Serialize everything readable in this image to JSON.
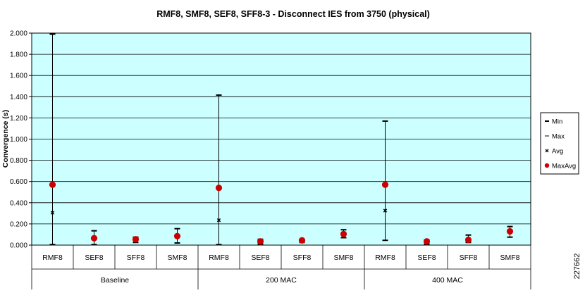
{
  "chart_data": {
    "type": "scatter",
    "title": "RMF8, SMF8, SEF8, SFF8-3 - Disconnect IES from 3750 (physical)",
    "ylabel": "Convergence (s)",
    "xlabel": "",
    "ylim": [
      0,
      2.0
    ],
    "yticks": [
      "0.000",
      "0.200",
      "0.400",
      "0.600",
      "0.800",
      "1.000",
      "1.200",
      "1.400",
      "1.600",
      "1.800",
      "2.000"
    ],
    "grid": true,
    "legend_position": "right",
    "groups": [
      {
        "name": "Baseline",
        "categories": [
          "RMF8",
          "SEF8",
          "SFF8",
          "SMF8"
        ]
      },
      {
        "name": "200 MAC",
        "categories": [
          "RMF8",
          "SEF8",
          "SFF8",
          "SMF8"
        ]
      },
      {
        "name": "400 MAC",
        "categories": [
          "RMF8",
          "SEF8",
          "SFF8",
          "SMF8"
        ]
      }
    ],
    "series": [
      {
        "name": "Min",
        "values": [
          0.005,
          0.005,
          0.025,
          0.02,
          0.005,
          0.01,
          0.025,
          0.07,
          0.045,
          0.01,
          0.025,
          0.075
        ]
      },
      {
        "name": "Max",
        "values": [
          1.99,
          0.135,
          0.075,
          0.155,
          1.415,
          0.055,
          0.055,
          0.145,
          1.17,
          0.05,
          0.095,
          0.175
        ]
      },
      {
        "name": "Avg",
        "values": [
          0.305,
          0.055,
          0.05,
          0.085,
          0.235,
          0.03,
          0.045,
          0.1,
          0.325,
          0.03,
          0.055,
          0.12
        ]
      },
      {
        "name": "MaxAvg",
        "values": [
          0.57,
          0.065,
          0.055,
          0.085,
          0.54,
          0.035,
          0.045,
          0.105,
          0.57,
          0.035,
          0.05,
          0.13
        ]
      }
    ],
    "colors": {
      "plot_bg": "#ccffff",
      "grid": "#000000",
      "marker_red": "#cc0000",
      "line": "#000000"
    }
  },
  "side_label": "227662"
}
